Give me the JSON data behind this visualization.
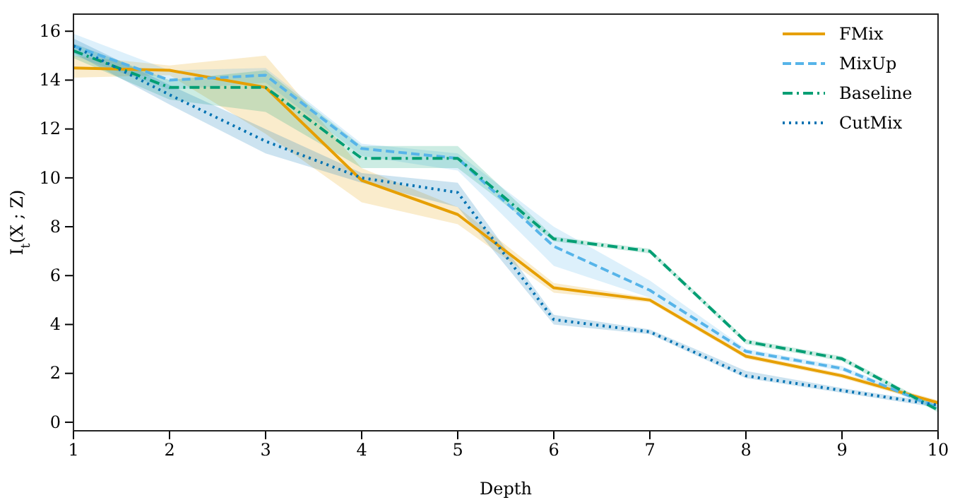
{
  "chart_data": {
    "type": "line",
    "xlabel": "Depth",
    "ylabel": "I$_{t}$(X ; Z)",
    "x": [
      1,
      2,
      3,
      4,
      5,
      6,
      7,
      8,
      9,
      10
    ],
    "xlim": [
      1,
      10
    ],
    "xticks": [
      1,
      2,
      3,
      4,
      5,
      6,
      7,
      8,
      9,
      10
    ],
    "ylim": [
      -0.35,
      16.7
    ],
    "yticks": [
      0,
      2,
      4,
      6,
      8,
      10,
      12,
      14,
      16
    ],
    "legend": "top right",
    "grid": false,
    "series": [
      {
        "name": "FMix",
        "color": "#e69f00",
        "line_style": "solid",
        "values": [
          14.5,
          14.4,
          13.7,
          9.9,
          8.5,
          5.5,
          5.0,
          2.7,
          1.9,
          0.8
        ],
        "lower": [
          14.1,
          14.2,
          11.8,
          9.0,
          8.1,
          5.3,
          4.9,
          2.6,
          1.8,
          0.7
        ],
        "upper": [
          15.0,
          14.6,
          15.0,
          10.4,
          8.8,
          5.7,
          5.1,
          2.8,
          2.0,
          0.9
        ]
      },
      {
        "name": "MixUp",
        "color": "#56b4e9",
        "line_style": "dashed",
        "values": [
          15.4,
          14.0,
          14.2,
          11.2,
          10.8,
          7.2,
          5.4,
          2.9,
          2.2,
          0.6
        ],
        "lower": [
          15.0,
          13.6,
          13.9,
          10.9,
          10.3,
          6.4,
          5.1,
          2.8,
          2.1,
          0.5
        ],
        "upper": [
          15.9,
          14.4,
          14.5,
          11.4,
          11.0,
          8.0,
          5.8,
          3.0,
          2.3,
          0.7
        ]
      },
      {
        "name": "Baseline",
        "color": "#009e73",
        "line_style": "dashdot",
        "values": [
          15.2,
          13.7,
          13.7,
          10.8,
          10.8,
          7.5,
          7.0,
          3.3,
          2.6,
          0.5
        ],
        "lower": [
          14.9,
          13.2,
          12.7,
          10.4,
          10.4,
          7.4,
          6.9,
          3.2,
          2.5,
          0.4
        ],
        "upper": [
          15.5,
          14.0,
          14.4,
          11.3,
          11.3,
          7.6,
          7.1,
          3.4,
          2.7,
          0.6
        ]
      },
      {
        "name": "CutMix",
        "color": "#0072b2",
        "line_style": "dotted",
        "values": [
          15.4,
          13.4,
          11.5,
          10.0,
          9.4,
          4.2,
          3.7,
          1.9,
          1.3,
          0.7
        ],
        "lower": [
          15.1,
          13.0,
          11.0,
          9.8,
          8.8,
          4.0,
          3.6,
          1.8,
          1.2,
          0.6
        ],
        "upper": [
          15.7,
          13.8,
          12.0,
          10.2,
          9.8,
          4.4,
          3.8,
          2.1,
          1.4,
          0.8
        ]
      }
    ]
  }
}
